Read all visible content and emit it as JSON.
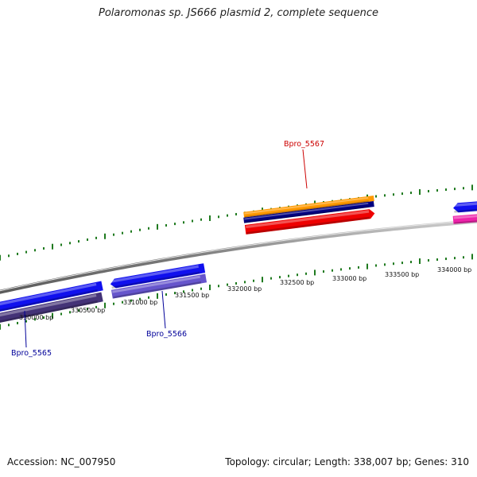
{
  "title": "Polaromonas sp. JS666 plasmid 2, complete sequence",
  "footer": {
    "accession": "Accession: NC_007950",
    "summary": "Topology: circular; Length: 338,007 bp; Genes: 310"
  },
  "colors": {
    "backbone": "#8a8a8a",
    "tick": "#1f7a1f",
    "cds_forward": "#ee0000",
    "cds_reverse": "#1010ee",
    "orange_track": "#ff9900",
    "navy_track": "#000080",
    "purple_track": "#6655cc",
    "dark_purple_track": "#443377",
    "magenta_track": "#ee22aa",
    "label_red": "#cc0000",
    "label_blue": "#000099"
  },
  "scale_labels": [
    "330000 bp",
    "330500 bp",
    "331000 bp",
    "331500 bp",
    "332000 bp",
    "332500 bp",
    "333000 bp",
    "333500 bp",
    "334000 bp"
  ],
  "genes": [
    {
      "name": "Bpro_5565",
      "color": "label_blue"
    },
    {
      "name": "Bpro_5566",
      "color": "label_blue"
    },
    {
      "name": "Bpro_5567",
      "color": "label_red"
    }
  ]
}
